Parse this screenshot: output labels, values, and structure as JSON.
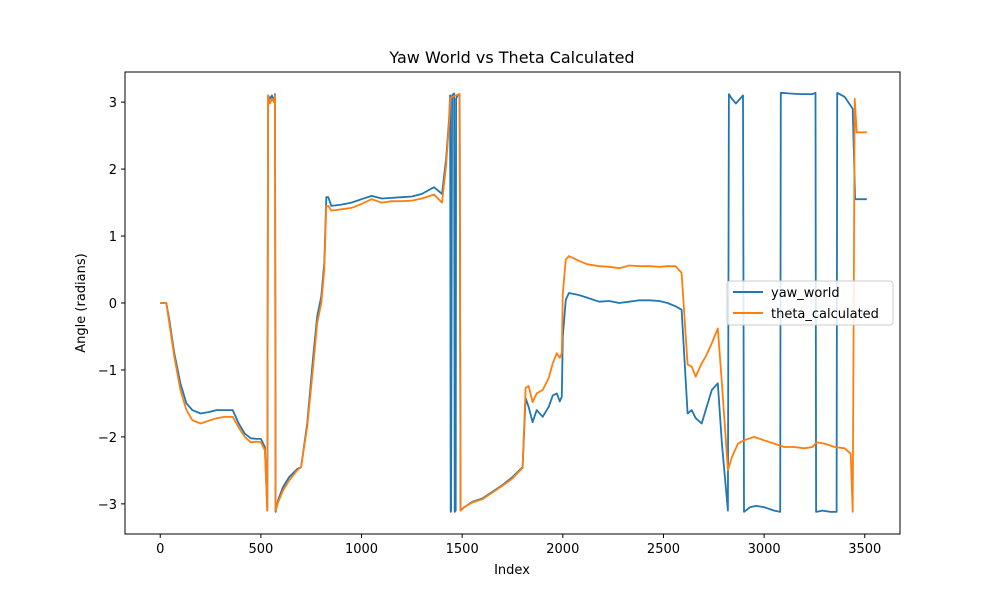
{
  "chart_data": {
    "type": "line",
    "title": "Yaw World vs Theta Calculated",
    "xlabel": "Index",
    "ylabel": "Angle (radians)",
    "xlim": [
      -175,
      3675
    ],
    "ylim": [
      -3.45,
      3.45
    ],
    "xticks": [
      0,
      500,
      1000,
      1500,
      2000,
      2500,
      3000,
      3500
    ],
    "yticks": [
      -3,
      -2,
      -1,
      0,
      1,
      2,
      3
    ],
    "xtick_labels": [
      "0",
      "500",
      "1000",
      "1500",
      "2000",
      "2500",
      "3000",
      "3500"
    ],
    "ytick_labels": [
      "−3",
      "−2",
      "−1",
      "0",
      "1",
      "2",
      "3"
    ],
    "grid": false,
    "legend_position": "center-right",
    "series": [
      {
        "name": "yaw_world",
        "color": "#1f77b4",
        "points": [
          [
            0,
            0.0
          ],
          [
            30,
            0.0
          ],
          [
            45,
            -0.25
          ],
          [
            70,
            -0.75
          ],
          [
            100,
            -1.2
          ],
          [
            130,
            -1.5
          ],
          [
            160,
            -1.6
          ],
          [
            200,
            -1.65
          ],
          [
            240,
            -1.63
          ],
          [
            280,
            -1.6
          ],
          [
            320,
            -1.6
          ],
          [
            360,
            -1.6
          ],
          [
            390,
            -1.8
          ],
          [
            420,
            -1.95
          ],
          [
            450,
            -2.02
          ],
          [
            480,
            -2.03
          ],
          [
            500,
            -2.03
          ],
          [
            520,
            -2.15
          ],
          [
            532,
            -3.1
          ],
          [
            536,
            3.1
          ],
          [
            545,
            3.05
          ],
          [
            555,
            3.1
          ],
          [
            565,
            3.0
          ],
          [
            570,
            3.12
          ],
          [
            573,
            -3.12
          ],
          [
            585,
            -2.95
          ],
          [
            610,
            -2.75
          ],
          [
            640,
            -2.6
          ],
          [
            680,
            -2.48
          ],
          [
            700,
            -2.45
          ],
          [
            730,
            -1.8
          ],
          [
            760,
            -0.8
          ],
          [
            780,
            -0.2
          ],
          [
            800,
            0.1
          ],
          [
            815,
            0.6
          ],
          [
            825,
            1.58
          ],
          [
            835,
            1.58
          ],
          [
            850,
            1.45
          ],
          [
            900,
            1.47
          ],
          [
            950,
            1.5
          ],
          [
            1000,
            1.55
          ],
          [
            1050,
            1.6
          ],
          [
            1100,
            1.56
          ],
          [
            1150,
            1.57
          ],
          [
            1200,
            1.58
          ],
          [
            1250,
            1.59
          ],
          [
            1300,
            1.63
          ],
          [
            1360,
            1.73
          ],
          [
            1380,
            1.68
          ],
          [
            1400,
            1.63
          ],
          [
            1420,
            2.15
          ],
          [
            1435,
            2.75
          ],
          [
            1440,
            3.1
          ],
          [
            1443,
            -3.12
          ],
          [
            1445,
            -3.1
          ],
          [
            1450,
            3.1
          ],
          [
            1460,
            3.13
          ],
          [
            1463,
            -3.12
          ],
          [
            1468,
            -3.1
          ],
          [
            1470,
            3.05
          ],
          [
            1478,
            3.1
          ],
          [
            1487,
            3.12
          ],
          [
            1492,
            -3.1
          ],
          [
            1510,
            -3.05
          ],
          [
            1550,
            -2.97
          ],
          [
            1600,
            -2.92
          ],
          [
            1650,
            -2.82
          ],
          [
            1700,
            -2.72
          ],
          [
            1750,
            -2.6
          ],
          [
            1800,
            -2.45
          ],
          [
            1815,
            -1.42
          ],
          [
            1830,
            -1.55
          ],
          [
            1850,
            -1.78
          ],
          [
            1870,
            -1.6
          ],
          [
            1900,
            -1.7
          ],
          [
            1930,
            -1.55
          ],
          [
            1950,
            -1.38
          ],
          [
            1970,
            -1.35
          ],
          [
            1985,
            -1.47
          ],
          [
            1995,
            -1.4
          ],
          [
            2000,
            -0.5
          ],
          [
            2015,
            0.05
          ],
          [
            2030,
            0.15
          ],
          [
            2080,
            0.12
          ],
          [
            2120,
            0.08
          ],
          [
            2180,
            0.02
          ],
          [
            2230,
            0.03
          ],
          [
            2280,
            0.0
          ],
          [
            2330,
            0.02
          ],
          [
            2380,
            0.04
          ],
          [
            2430,
            0.04
          ],
          [
            2480,
            0.03
          ],
          [
            2520,
            0.0
          ],
          [
            2560,
            -0.05
          ],
          [
            2590,
            -0.1
          ],
          [
            2620,
            -1.65
          ],
          [
            2640,
            -1.6
          ],
          [
            2660,
            -1.72
          ],
          [
            2690,
            -1.8
          ],
          [
            2710,
            -1.6
          ],
          [
            2740,
            -1.3
          ],
          [
            2770,
            -1.2
          ],
          [
            2790,
            -2.1
          ],
          [
            2820,
            -3.1
          ],
          [
            2825,
            3.12
          ],
          [
            2840,
            3.05
          ],
          [
            2860,
            2.98
          ],
          [
            2880,
            3.05
          ],
          [
            2895,
            3.1
          ],
          [
            2900,
            -3.12
          ],
          [
            2930,
            -3.05
          ],
          [
            2960,
            -3.03
          ],
          [
            3000,
            -3.05
          ],
          [
            3050,
            -3.1
          ],
          [
            3080,
            -3.12
          ],
          [
            3083,
            3.14
          ],
          [
            3120,
            3.13
          ],
          [
            3180,
            3.12
          ],
          [
            3240,
            3.12
          ],
          [
            3255,
            3.14
          ],
          [
            3258,
            -3.12
          ],
          [
            3290,
            -3.1
          ],
          [
            3330,
            -3.12
          ],
          [
            3360,
            -3.12
          ],
          [
            3363,
            3.14
          ],
          [
            3400,
            3.08
          ],
          [
            3440,
            2.9
          ],
          [
            3452,
            1.55
          ],
          [
            3475,
            1.55
          ],
          [
            3510,
            1.55
          ]
        ]
      },
      {
        "name": "theta_calculated",
        "color": "#ff7f0e",
        "points": [
          [
            0,
            0.0
          ],
          [
            30,
            0.0
          ],
          [
            45,
            -0.3
          ],
          [
            70,
            -0.8
          ],
          [
            100,
            -1.3
          ],
          [
            130,
            -1.6
          ],
          [
            160,
            -1.75
          ],
          [
            200,
            -1.8
          ],
          [
            240,
            -1.76
          ],
          [
            280,
            -1.72
          ],
          [
            320,
            -1.7
          ],
          [
            360,
            -1.7
          ],
          [
            390,
            -1.86
          ],
          [
            420,
            -2.0
          ],
          [
            450,
            -2.08
          ],
          [
            480,
            -2.07
          ],
          [
            500,
            -2.08
          ],
          [
            520,
            -2.2
          ],
          [
            532,
            -3.1
          ],
          [
            536,
            3.1
          ],
          [
            545,
            2.98
          ],
          [
            555,
            3.05
          ],
          [
            565,
            3.0
          ],
          [
            570,
            3.1
          ],
          [
            573,
            -3.1
          ],
          [
            585,
            -2.98
          ],
          [
            610,
            -2.8
          ],
          [
            640,
            -2.65
          ],
          [
            680,
            -2.5
          ],
          [
            700,
            -2.45
          ],
          [
            730,
            -1.85
          ],
          [
            760,
            -0.95
          ],
          [
            780,
            -0.3
          ],
          [
            800,
            0.0
          ],
          [
            815,
            0.5
          ],
          [
            825,
            1.45
          ],
          [
            835,
            1.45
          ],
          [
            850,
            1.38
          ],
          [
            900,
            1.4
          ],
          [
            950,
            1.42
          ],
          [
            1000,
            1.48
          ],
          [
            1050,
            1.55
          ],
          [
            1100,
            1.5
          ],
          [
            1150,
            1.52
          ],
          [
            1200,
            1.52
          ],
          [
            1250,
            1.53
          ],
          [
            1300,
            1.56
          ],
          [
            1360,
            1.62
          ],
          [
            1380,
            1.56
          ],
          [
            1400,
            1.5
          ],
          [
            1420,
            2.05
          ],
          [
            1435,
            2.7
          ],
          [
            1440,
            3.05
          ],
          [
            1450,
            3.08
          ],
          [
            1470,
            3.1
          ],
          [
            1487,
            3.12
          ],
          [
            1492,
            -3.1
          ],
          [
            1510,
            -3.05
          ],
          [
            1550,
            -2.98
          ],
          [
            1600,
            -2.93
          ],
          [
            1650,
            -2.83
          ],
          [
            1700,
            -2.73
          ],
          [
            1750,
            -2.62
          ],
          [
            1800,
            -2.46
          ],
          [
            1815,
            -1.27
          ],
          [
            1830,
            -1.24
          ],
          [
            1850,
            -1.48
          ],
          [
            1870,
            -1.35
          ],
          [
            1900,
            -1.3
          ],
          [
            1930,
            -1.12
          ],
          [
            1950,
            -0.9
          ],
          [
            1970,
            -0.75
          ],
          [
            1985,
            -0.82
          ],
          [
            1995,
            -0.75
          ],
          [
            2000,
            0.15
          ],
          [
            2015,
            0.65
          ],
          [
            2030,
            0.7
          ],
          [
            2080,
            0.63
          ],
          [
            2120,
            0.58
          ],
          [
            2180,
            0.55
          ],
          [
            2230,
            0.54
          ],
          [
            2280,
            0.52
          ],
          [
            2330,
            0.56
          ],
          [
            2380,
            0.55
          ],
          [
            2430,
            0.55
          ],
          [
            2480,
            0.54
          ],
          [
            2520,
            0.55
          ],
          [
            2560,
            0.55
          ],
          [
            2590,
            0.45
          ],
          [
            2620,
            -0.92
          ],
          [
            2640,
            -0.95
          ],
          [
            2660,
            -1.1
          ],
          [
            2690,
            -0.9
          ],
          [
            2710,
            -0.8
          ],
          [
            2740,
            -0.6
          ],
          [
            2770,
            -0.38
          ],
          [
            2790,
            -1.2
          ],
          [
            2820,
            -2.5
          ],
          [
            2840,
            -2.3
          ],
          [
            2870,
            -2.1
          ],
          [
            2900,
            -2.05
          ],
          [
            2950,
            -2.0
          ],
          [
            3000,
            -2.05
          ],
          [
            3050,
            -2.1
          ],
          [
            3100,
            -2.15
          ],
          [
            3150,
            -2.15
          ],
          [
            3200,
            -2.17
          ],
          [
            3240,
            -2.15
          ],
          [
            3260,
            -2.08
          ],
          [
            3300,
            -2.1
          ],
          [
            3350,
            -2.15
          ],
          [
            3400,
            -2.17
          ],
          [
            3430,
            -2.25
          ],
          [
            3440,
            -3.12
          ],
          [
            3450,
            3.05
          ],
          [
            3460,
            2.55
          ],
          [
            3510,
            2.55
          ]
        ]
      }
    ]
  }
}
